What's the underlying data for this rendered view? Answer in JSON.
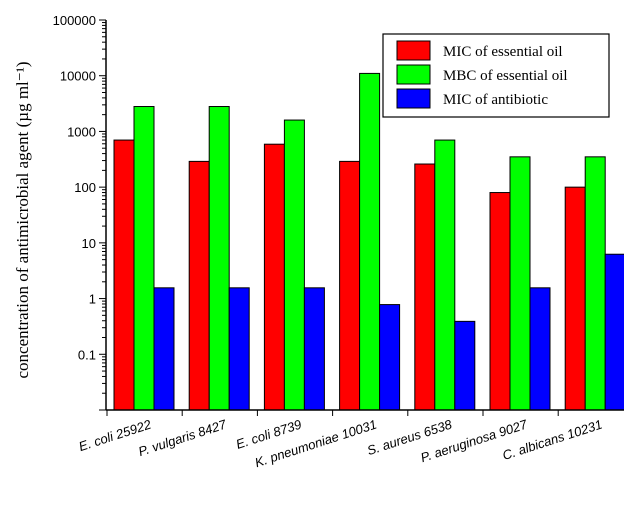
{
  "chart_data": {
    "type": "bar",
    "ylabel": "concentration of antimicrobial agent (µg ml⁻¹)",
    "xlabel": "",
    "yscale": "log",
    "ylim": [
      0.01,
      100000
    ],
    "yticks": [
      "0.1",
      "1",
      "10",
      "100",
      "1000",
      "10000",
      "100000"
    ],
    "ytick_values": [
      0.1,
      1,
      10,
      100,
      1000,
      10000,
      100000
    ],
    "categories": [
      "E. coli 25922",
      "P. vulgaris 8427",
      "E. coli 8739",
      "K. pneumoniae 10031",
      "S. aureus 6538",
      "P. aeruginosa 9027",
      "C. albicans 10231"
    ],
    "series": [
      {
        "name": "MIC of essential oil",
        "color": "#ff0000",
        "values": [
          700,
          290,
          590,
          290,
          260,
          80,
          100
        ]
      },
      {
        "name": "MBC of essential oil",
        "color": "#00ff00",
        "values": [
          2800,
          2800,
          1600,
          11000,
          700,
          350,
          350
        ]
      },
      {
        "name": "MIC of antibiotic",
        "color": "#0000ff",
        "values": [
          1.56,
          1.56,
          1.56,
          0.78,
          0.39,
          1.56,
          6.25
        ]
      }
    ],
    "legend_position": "top-right",
    "grid": false
  }
}
